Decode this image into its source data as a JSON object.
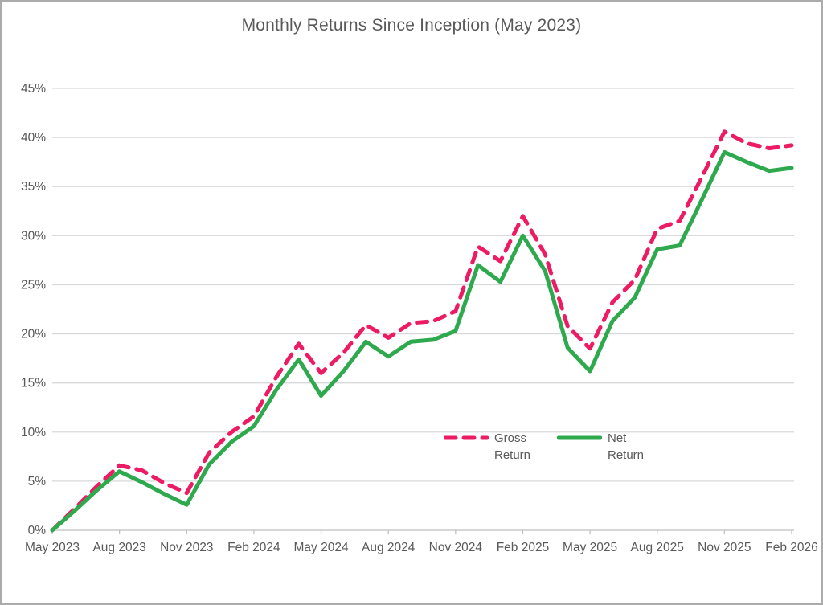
{
  "page": {
    "title": "Monthly Returns Since Inception (May 2023)"
  },
  "chart_data": {
    "type": "line",
    "title": "Monthly Returns Since Inception (May 2023)",
    "xlabel": "",
    "ylabel": "",
    "ylim": [
      0,
      45
    ],
    "ytick_step": 5,
    "ytick_labels": [
      "0%",
      "5%",
      "10%",
      "15%",
      "20%",
      "25%",
      "30%",
      "35%",
      "40%",
      "45%"
    ],
    "xtick_every": 3,
    "xtick_labels": [
      "May 2023",
      "Aug 2023",
      "Nov 2023",
      "Feb 2024",
      "May 2024",
      "Aug 2024",
      "Nov 2024",
      "Feb 2025",
      "May 2025",
      "Aug 2025",
      "Nov 2025",
      "Feb 2026"
    ],
    "grid": true,
    "legend_position": "inside-bottom-center",
    "categories": [
      "May 2023",
      "Jun 2023",
      "Jul 2023",
      "Aug 2023",
      "Sep 2023",
      "Oct 2023",
      "Nov 2023",
      "Dec 2023",
      "Jan 2024",
      "Feb 2024",
      "Mar 2024",
      "Apr 2024",
      "May 2024",
      "Jun 2024",
      "Jul 2024",
      "Aug 2024",
      "Sep 2024",
      "Oct 2024",
      "Nov 2024",
      "Dec 2024",
      "Jan 2025",
      "Feb 2025",
      "Mar 2025",
      "Apr 2025",
      "May 2025",
      "Jun 2025",
      "Jul 2025",
      "Aug 2025",
      "Sep 2025",
      "Oct 2025",
      "Nov 2025",
      "Dec 2025",
      "Jan 2026",
      "Feb 2026"
    ],
    "series": [
      {
        "name": "Gross Return",
        "style": "dashed",
        "color": "#ec1b63",
        "values": [
          0.0,
          2.2,
          4.5,
          6.6,
          6.1,
          4.8,
          3.8,
          7.9,
          10.0,
          11.6,
          15.6,
          19.0,
          16.0,
          18.1,
          20.9,
          19.6,
          21.1,
          21.3,
          22.3,
          28.9,
          27.4,
          32.0,
          28.1,
          20.8,
          18.5,
          23.2,
          25.5,
          30.7,
          31.5,
          36.0,
          40.6,
          39.4,
          38.9,
          39.2
        ]
      },
      {
        "name": "Net Return",
        "style": "solid",
        "color": "#2fa94d",
        "values": [
          0.0,
          2.0,
          4.1,
          6.0,
          4.9,
          3.7,
          2.6,
          6.7,
          9.0,
          10.6,
          14.3,
          17.4,
          13.7,
          16.2,
          19.2,
          17.7,
          19.2,
          19.4,
          20.3,
          27.0,
          25.3,
          30.0,
          26.4,
          18.6,
          16.2,
          21.3,
          23.7,
          28.6,
          29.0,
          33.7,
          38.5,
          37.5,
          36.6,
          36.9
        ]
      }
    ]
  },
  "colors": {
    "text": "#595959",
    "gridline": "#d9d9d9",
    "axis": "#bfbfbf",
    "frame_border": "#ababab",
    "background": "#ffffff"
  }
}
